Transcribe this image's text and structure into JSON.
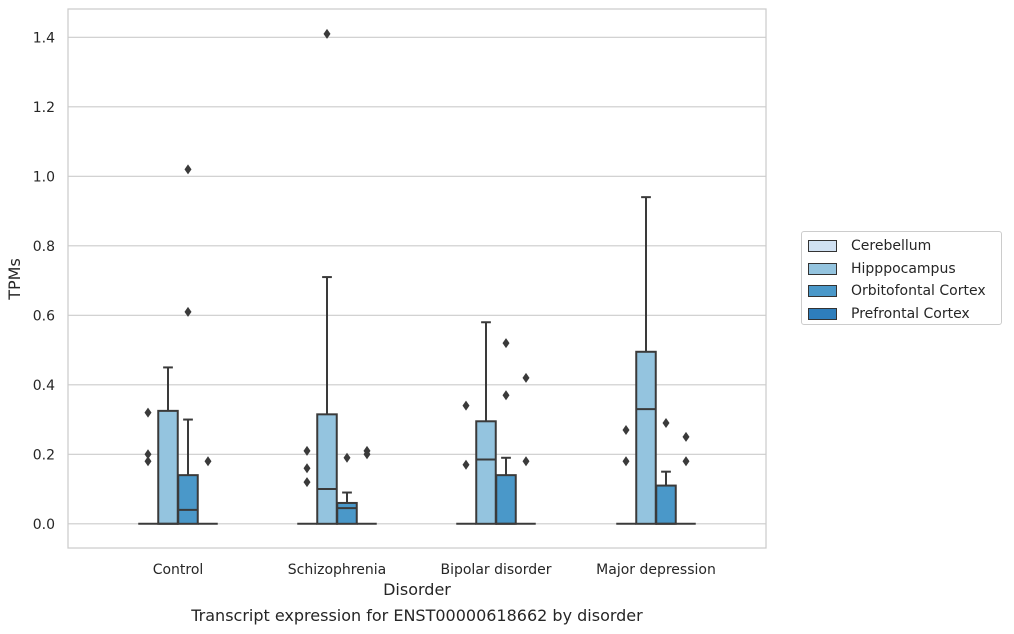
{
  "chart_data": {
    "type": "box",
    "xlabel": "Disorder",
    "ylabel": "TPMs",
    "ylim": [
      -0.07,
      1.48
    ],
    "yticks": [
      "0.0",
      "0.2",
      "0.4",
      "0.6",
      "0.8",
      "1.0",
      "1.2",
      "1.4"
    ],
    "grid": "horizontal",
    "legend_position": "right",
    "categories": [
      "Control",
      "Schizophrenia",
      "Bipolar disorder",
      "Major depression"
    ],
    "series": [
      {
        "name": "Cerebellum",
        "color": "#d0e1f2",
        "boxes": [
          {
            "q1": 0,
            "median": 0,
            "q3": 0,
            "whisker_low": 0,
            "whisker_high": 0,
            "outliers": []
          },
          {
            "q1": 0,
            "median": 0,
            "q3": 0,
            "whisker_low": 0,
            "whisker_high": 0,
            "outliers": []
          },
          {
            "q1": 0,
            "median": 0,
            "q3": 0,
            "whisker_low": 0,
            "whisker_high": 0,
            "outliers": []
          },
          {
            "q1": 0,
            "median": 0,
            "q3": 0,
            "whisker_low": 0,
            "whisker_high": 0,
            "outliers": []
          }
        ]
      },
      {
        "name": "Hipppocampus",
        "color": "#94c4df",
        "boxes": [
          {
            "q1": 0,
            "median": 0,
            "q3": 0.325,
            "whisker_low": 0,
            "whisker_high": 0.45,
            "outliers": []
          },
          {
            "q1": 0,
            "median": 0.1,
            "q3": 0.315,
            "whisker_low": 0,
            "whisker_high": 0.71,
            "outliers": [
              1.41
            ]
          },
          {
            "q1": 0,
            "median": 0.185,
            "q3": 0.295,
            "whisker_low": 0,
            "whisker_high": 0.58,
            "outliers": []
          },
          {
            "q1": 0,
            "median": 0.33,
            "q3": 0.495,
            "whisker_low": 0,
            "whisker_high": 0.94,
            "outliers": []
          }
        ]
      },
      {
        "name": "Orbitofontal Cortex",
        "color": "#4a98c9",
        "boxes": [
          {
            "q1": 0,
            "median": 0.04,
            "q3": 0.14,
            "whisker_low": 0,
            "whisker_high": 0.3,
            "outliers": [
              0.61,
              1.02
            ]
          },
          {
            "q1": 0,
            "median": 0.045,
            "q3": 0.06,
            "whisker_low": 0,
            "whisker_high": 0.09,
            "outliers": [
              0.19
            ]
          },
          {
            "q1": 0,
            "median": 0,
            "q3": 0.14,
            "whisker_low": 0,
            "whisker_high": 0.19,
            "outliers": [
              0.37,
              0.52
            ]
          },
          {
            "q1": 0,
            "median": 0,
            "q3": 0.11,
            "whisker_low": 0,
            "whisker_high": 0.15,
            "outliers": [
              0.29
            ]
          }
        ]
      },
      {
        "name": "Prefrontal Cortex",
        "color": "#2e7ebc",
        "boxes": [
          {
            "q1": 0,
            "median": 0,
            "q3": 0,
            "whisker_low": 0,
            "whisker_high": 0,
            "outliers": [
              0.18
            ]
          },
          {
            "q1": 0,
            "median": 0,
            "q3": 0,
            "whisker_low": 0,
            "whisker_high": 0,
            "outliers": [
              0.2,
              0.21
            ]
          },
          {
            "q1": 0,
            "median": 0,
            "q3": 0,
            "whisker_low": 0,
            "whisker_high": 0,
            "outliers": [
              0.18,
              0.42
            ]
          },
          {
            "q1": 0,
            "median": 0,
            "q3": 0,
            "whisker_low": 0,
            "whisker_high": 0,
            "outliers": [
              0.18,
              0.25
            ]
          }
        ]
      }
    ],
    "first_series_outliers_note": "",
    "cerebellum_outliers": [
      [
        0.18,
        0.2,
        0.32
      ],
      [
        0.12,
        0.16,
        0.21
      ],
      [
        0.17,
        0.34
      ],
      [
        0.18,
        0.27
      ]
    ],
    "caption": "Transcript expression for ENST00000618662 by disorder"
  }
}
